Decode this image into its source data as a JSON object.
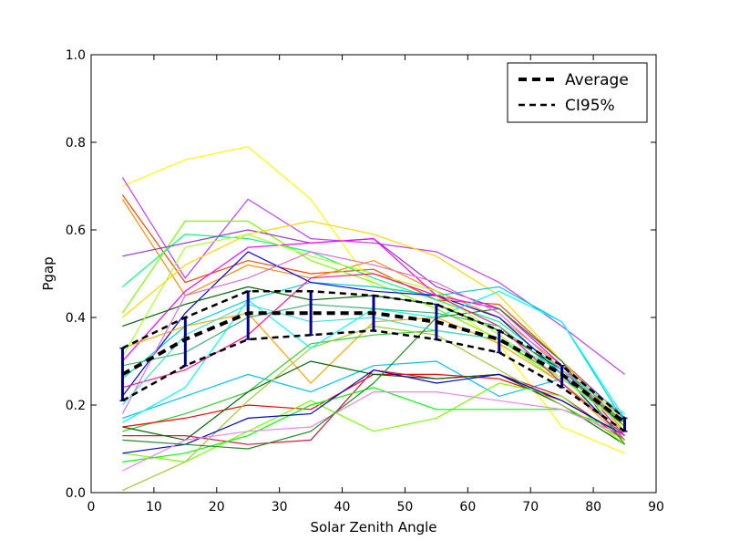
{
  "chart_data": {
    "type": "line",
    "title": "",
    "xlabel": "Solar Zenith Angle",
    "ylabel": "Pgap",
    "xlim": [
      0,
      90
    ],
    "ylim": [
      0.0,
      1.0
    ],
    "xticks": [
      0,
      10,
      20,
      30,
      40,
      50,
      60,
      70,
      80,
      90
    ],
    "yticks": [
      0.0,
      0.2,
      0.4,
      0.6,
      0.8,
      1.0
    ],
    "xtick_labels": [
      "0",
      "10",
      "20",
      "30",
      "40",
      "50",
      "60",
      "70",
      "80",
      "90"
    ],
    "ytick_labels": [
      "0.0",
      "0.2",
      "0.4",
      "0.6",
      "0.8",
      "1.0"
    ],
    "grid": false,
    "legend_position": "top-right",
    "legend": [
      {
        "label": "Average",
        "style": "thick-dashed",
        "color": "#000000"
      },
      {
        "label": "CI95%",
        "style": "dashed",
        "color": "#000000"
      }
    ],
    "x": [
      5,
      15,
      25,
      35,
      45,
      55,
      65,
      75,
      85
    ],
    "average": {
      "name": "Average",
      "values": [
        0.27,
        0.35,
        0.41,
        0.41,
        0.41,
        0.39,
        0.35,
        0.27,
        0.16
      ]
    },
    "ci95_upper": {
      "name": "CI95%",
      "values": [
        0.33,
        0.4,
        0.46,
        0.46,
        0.45,
        0.43,
        0.37,
        0.29,
        0.17
      ]
    },
    "ci95_lower": {
      "values": [
        0.21,
        0.29,
        0.35,
        0.36,
        0.37,
        0.35,
        0.32,
        0.24,
        0.14
      ]
    },
    "error_bar_color": "#00008b",
    "sample_lines": [
      {
        "color": "#ffff00",
        "values": [
          0.7,
          0.76,
          0.79,
          0.67,
          0.47,
          0.45,
          0.34,
          0.15,
          0.09
        ]
      },
      {
        "color": "#bf3fff",
        "values": [
          0.72,
          0.49,
          0.67,
          0.58,
          0.57,
          0.55,
          0.48,
          0.38,
          0.27
        ]
      },
      {
        "color": "#ff4500",
        "values": [
          0.68,
          0.48,
          0.53,
          0.5,
          0.51,
          0.44,
          0.43,
          0.3,
          0.15
        ]
      },
      {
        "color": "#ff8c00",
        "values": [
          0.67,
          0.45,
          0.52,
          0.49,
          0.53,
          0.46,
          0.4,
          0.29,
          0.14
        ]
      },
      {
        "color": "#7cfc00",
        "values": [
          0.41,
          0.62,
          0.62,
          0.53,
          0.48,
          0.42,
          0.35,
          0.25,
          0.14
        ]
      },
      {
        "color": "#00ff7f",
        "values": [
          0.47,
          0.59,
          0.58,
          0.55,
          0.49,
          0.44,
          0.39,
          0.28,
          0.17
        ]
      },
      {
        "color": "#9932cc",
        "values": [
          0.54,
          0.57,
          0.6,
          0.57,
          0.58,
          0.47,
          0.42,
          0.3,
          0.17
        ]
      },
      {
        "color": "#ffd700",
        "values": [
          0.4,
          0.52,
          0.59,
          0.62,
          0.59,
          0.54,
          0.45,
          0.3,
          0.16
        ]
      },
      {
        "color": "#ff00ff",
        "values": [
          0.3,
          0.46,
          0.56,
          0.57,
          0.58,
          0.45,
          0.42,
          0.29,
          0.13
        ]
      },
      {
        "color": "#00ced1",
        "values": [
          0.26,
          0.38,
          0.44,
          0.48,
          0.47,
          0.45,
          0.47,
          0.39,
          0.16
        ]
      },
      {
        "color": "#0000ff",
        "values": [
          0.22,
          0.41,
          0.55,
          0.48,
          0.46,
          0.45,
          0.4,
          0.27,
          0.12
        ]
      },
      {
        "color": "#006400",
        "values": [
          0.38,
          0.43,
          0.47,
          0.44,
          0.45,
          0.43,
          0.37,
          0.28,
          0.15
        ]
      },
      {
        "color": "#ffa500",
        "values": [
          0.33,
          0.38,
          0.41,
          0.25,
          0.39,
          0.4,
          0.34,
          0.25,
          0.12
        ]
      },
      {
        "color": "#00bfff",
        "values": [
          0.17,
          0.22,
          0.27,
          0.23,
          0.29,
          0.3,
          0.22,
          0.26,
          0.15
        ]
      },
      {
        "color": "#32cd32",
        "values": [
          0.14,
          0.18,
          0.23,
          0.34,
          0.36,
          0.37,
          0.35,
          0.26,
          0.16
        ]
      },
      {
        "color": "#ff0000",
        "values": [
          0.15,
          0.17,
          0.2,
          0.19,
          0.27,
          0.27,
          0.26,
          0.21,
          0.13
        ]
      },
      {
        "color": "#dc143c",
        "values": [
          0.13,
          0.13,
          0.11,
          0.12,
          0.28,
          0.26,
          0.27,
          0.22,
          0.12
        ]
      },
      {
        "color": "#006400",
        "values": [
          0.15,
          0.12,
          0.23,
          0.3,
          0.27,
          0.26,
          0.27,
          0.2,
          0.11
        ]
      },
      {
        "color": "#7cfc00",
        "values": [
          0.09,
          0.07,
          0.14,
          0.21,
          0.14,
          0.17,
          0.25,
          0.22,
          0.11
        ]
      },
      {
        "color": "#00ff00",
        "values": [
          0.07,
          0.09,
          0.13,
          0.2,
          0.24,
          0.19,
          0.19,
          0.19,
          0.14
        ]
      },
      {
        "color": "#9acd32",
        "values": [
          0.005,
          0.07,
          0.21,
          0.33,
          0.38,
          0.36,
          0.28,
          0.2,
          0.12
        ]
      },
      {
        "color": "#0000cd",
        "values": [
          0.09,
          0.11,
          0.17,
          0.18,
          0.28,
          0.25,
          0.27,
          0.21,
          0.13
        ]
      },
      {
        "color": "#ee82ee",
        "values": [
          0.05,
          0.12,
          0.14,
          0.15,
          0.23,
          0.23,
          0.21,
          0.19,
          0.13
        ]
      },
      {
        "color": "#228b22",
        "values": [
          0.12,
          0.11,
          0.1,
          0.14,
          0.25,
          0.4,
          0.42,
          0.3,
          0.11
        ]
      },
      {
        "color": "#00ffff",
        "values": [
          0.16,
          0.24,
          0.44,
          0.33,
          0.42,
          0.4,
          0.46,
          0.39,
          0.17
        ]
      },
      {
        "color": "#adff2f",
        "values": [
          0.31,
          0.56,
          0.59,
          0.54,
          0.5,
          0.46,
          0.36,
          0.26,
          0.15
        ]
      },
      {
        "color": "#da70d6",
        "values": [
          0.18,
          0.45,
          0.49,
          0.55,
          0.52,
          0.48,
          0.41,
          0.28,
          0.16
        ]
      },
      {
        "color": "#ff1493",
        "values": [
          0.24,
          0.28,
          0.36,
          0.49,
          0.5,
          0.45,
          0.38,
          0.25,
          0.13
        ]
      },
      {
        "color": "#3cb371",
        "values": [
          0.29,
          0.32,
          0.4,
          0.43,
          0.42,
          0.41,
          0.38,
          0.27,
          0.16
        ]
      },
      {
        "color": "#40e0d0",
        "values": [
          0.2,
          0.36,
          0.43,
          0.39,
          0.4,
          0.37,
          0.35,
          0.28,
          0.18
        ]
      }
    ]
  }
}
